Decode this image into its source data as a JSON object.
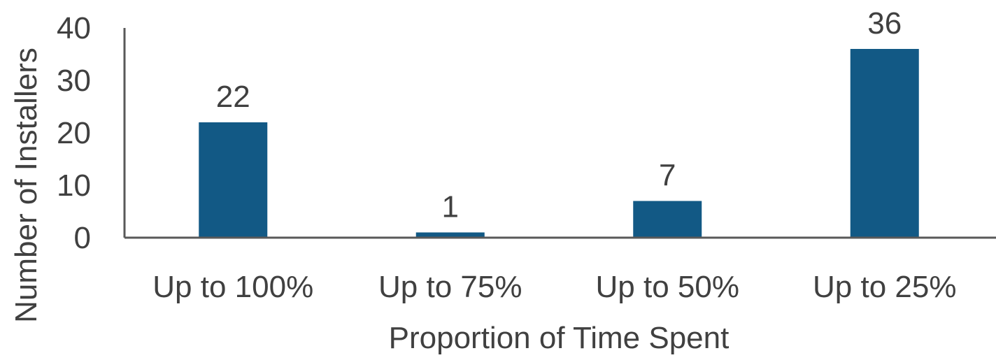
{
  "chart_data": {
    "type": "bar",
    "categories": [
      "Up to 100%",
      "Up to 75%",
      "Up to 50%",
      "Up to 25%"
    ],
    "values": [
      22,
      1,
      7,
      36
    ],
    "data_labels": [
      "22",
      "1",
      "7",
      "36"
    ],
    "title": "",
    "xlabel": "Proportion of Time Spent",
    "ylabel": "Number of Installers",
    "ylim": [
      0,
      40
    ],
    "yticks": [
      0,
      10,
      20,
      30,
      40
    ],
    "grid": false,
    "legend": "none"
  },
  "colors": {
    "bar": "#125985",
    "axis": "#595959",
    "text": "#404040"
  }
}
